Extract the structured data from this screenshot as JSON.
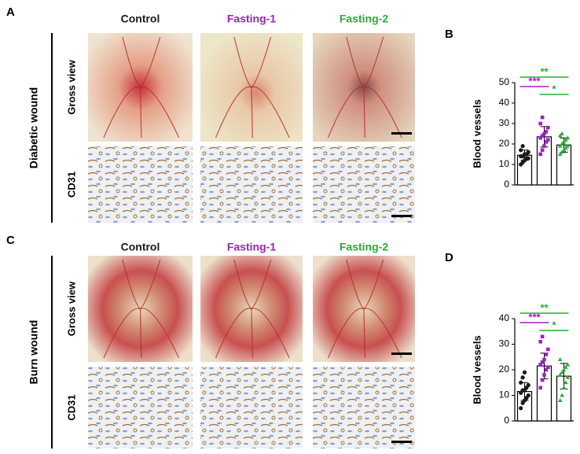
{
  "panels": [
    {
      "label": "A",
      "side_label": "Diabetic wound",
      "columns": [
        "Control",
        "Fasting-1",
        "Fasting-2"
      ],
      "rows": [
        "Gross view",
        "CD31"
      ]
    },
    {
      "label": "C",
      "side_label": "Burn wound",
      "columns": [
        "Control",
        "Fasting-1",
        "Fasting-2"
      ],
      "rows": [
        "Gross view",
        "CD31"
      ]
    }
  ],
  "column_colors": [
    "#1a1a1a",
    "#a020c8",
    "#22b030"
  ],
  "chart_data": [
    {
      "type": "bar",
      "panel": "B",
      "ylabel": "Blood vessels",
      "categories": [
        null,
        null,
        null
      ],
      "values": [
        14.5,
        23.5,
        19.5
      ],
      "errors": [
        2.5,
        5,
        3.5
      ],
      "colors": [
        "#1a1a1a",
        "#a020c8",
        "#22b030"
      ],
      "markers": [
        "circle",
        "square",
        "triangle"
      ],
      "points": [
        [
          10,
          11,
          12,
          13,
          13,
          14,
          14,
          15,
          15,
          16,
          17,
          19
        ],
        [
          15,
          17,
          19,
          21,
          22,
          23,
          24,
          25,
          26,
          28,
          30,
          33
        ],
        [
          15,
          16,
          17,
          18,
          19,
          19,
          20,
          21,
          22,
          23,
          24,
          25
        ]
      ],
      "ylim": [
        0,
        50
      ],
      "yticks": [
        0,
        10,
        20,
        30,
        40,
        50
      ],
      "annotations": [
        {
          "text": "**",
          "color": "#22b030"
        },
        {
          "text": "***",
          "color": "#a020c8"
        },
        {
          "text": "*",
          "color": "#22b030"
        }
      ]
    },
    {
      "type": "bar",
      "panel": "D",
      "ylabel": "Blood vessels",
      "categories": [
        null,
        null,
        null
      ],
      "values": [
        11.5,
        21.5,
        17.5
      ],
      "errors": [
        3.5,
        5,
        5
      ],
      "colors": [
        "#1a1a1a",
        "#a020c8",
        "#22b030"
      ],
      "markers": [
        "circle",
        "square",
        "triangle"
      ],
      "points": [
        [
          5,
          7,
          8,
          9,
          10,
          11,
          12,
          12,
          13,
          14,
          15,
          17,
          19
        ],
        [
          13,
          16,
          18,
          20,
          21,
          22,
          23,
          24,
          26,
          28,
          31,
          33
        ],
        [
          8,
          10,
          13,
          15,
          17,
          18,
          19,
          20,
          21,
          22,
          24
        ]
      ],
      "ylim": [
        0,
        40
      ],
      "yticks": [
        0,
        10,
        20,
        30,
        40
      ],
      "annotations": [
        {
          "text": "**",
          "color": "#22b030"
        },
        {
          "text": "***",
          "color": "#a020c8"
        },
        {
          "text": "*",
          "color": "#22b030"
        }
      ]
    }
  ]
}
